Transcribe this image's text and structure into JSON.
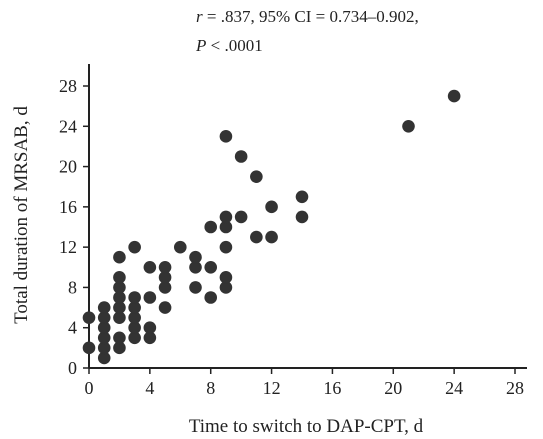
{
  "chart_data": {
    "type": "scatter",
    "title": "",
    "annotation": {
      "r_symbol": "r",
      "line1_rest": " = .837, 95% CI = 0.734–0.902,",
      "p_symbol": "P",
      "line2_rest": " < .0001"
    },
    "xlabel": "Time to switch to DAP-CPT, d",
    "ylabel": "Total duration of MRSAB, d",
    "xlim": [
      0,
      28
    ],
    "ylim": [
      0,
      28
    ],
    "xticks": [
      0,
      4,
      8,
      12,
      16,
      20,
      24,
      28
    ],
    "yticks": [
      0,
      4,
      8,
      12,
      16,
      20,
      24,
      28
    ],
    "grid": false,
    "marker_color": "#333333",
    "points": [
      {
        "x": 0,
        "y": 2
      },
      {
        "x": 0,
        "y": 5
      },
      {
        "x": 1,
        "y": 1
      },
      {
        "x": 1,
        "y": 2
      },
      {
        "x": 1,
        "y": 3
      },
      {
        "x": 1,
        "y": 4
      },
      {
        "x": 1,
        "y": 5
      },
      {
        "x": 1,
        "y": 6
      },
      {
        "x": 2,
        "y": 2
      },
      {
        "x": 2,
        "y": 3
      },
      {
        "x": 2,
        "y": 5
      },
      {
        "x": 2,
        "y": 6
      },
      {
        "x": 2,
        "y": 7
      },
      {
        "x": 2,
        "y": 8
      },
      {
        "x": 2,
        "y": 9
      },
      {
        "x": 2,
        "y": 11
      },
      {
        "x": 3,
        "y": 3
      },
      {
        "x": 3,
        "y": 4
      },
      {
        "x": 3,
        "y": 5
      },
      {
        "x": 3,
        "y": 6
      },
      {
        "x": 3,
        "y": 7
      },
      {
        "x": 3,
        "y": 12
      },
      {
        "x": 4,
        "y": 3
      },
      {
        "x": 4,
        "y": 4
      },
      {
        "x": 4,
        "y": 7
      },
      {
        "x": 4,
        "y": 10
      },
      {
        "x": 5,
        "y": 6
      },
      {
        "x": 5,
        "y": 8
      },
      {
        "x": 5,
        "y": 9
      },
      {
        "x": 5,
        "y": 10
      },
      {
        "x": 6,
        "y": 12
      },
      {
        "x": 7,
        "y": 8
      },
      {
        "x": 7,
        "y": 10
      },
      {
        "x": 7,
        "y": 11
      },
      {
        "x": 8,
        "y": 7
      },
      {
        "x": 8,
        "y": 10
      },
      {
        "x": 8,
        "y": 14
      },
      {
        "x": 9,
        "y": 8
      },
      {
        "x": 9,
        "y": 9
      },
      {
        "x": 9,
        "y": 12
      },
      {
        "x": 9,
        "y": 14
      },
      {
        "x": 9,
        "y": 15
      },
      {
        "x": 9,
        "y": 23
      },
      {
        "x": 10,
        "y": 15
      },
      {
        "x": 10,
        "y": 21
      },
      {
        "x": 11,
        "y": 13
      },
      {
        "x": 11,
        "y": 19
      },
      {
        "x": 12,
        "y": 13
      },
      {
        "x": 12,
        "y": 16
      },
      {
        "x": 14,
        "y": 15
      },
      {
        "x": 14,
        "y": 17
      },
      {
        "x": 21,
        "y": 24
      },
      {
        "x": 24,
        "y": 27
      }
    ]
  }
}
